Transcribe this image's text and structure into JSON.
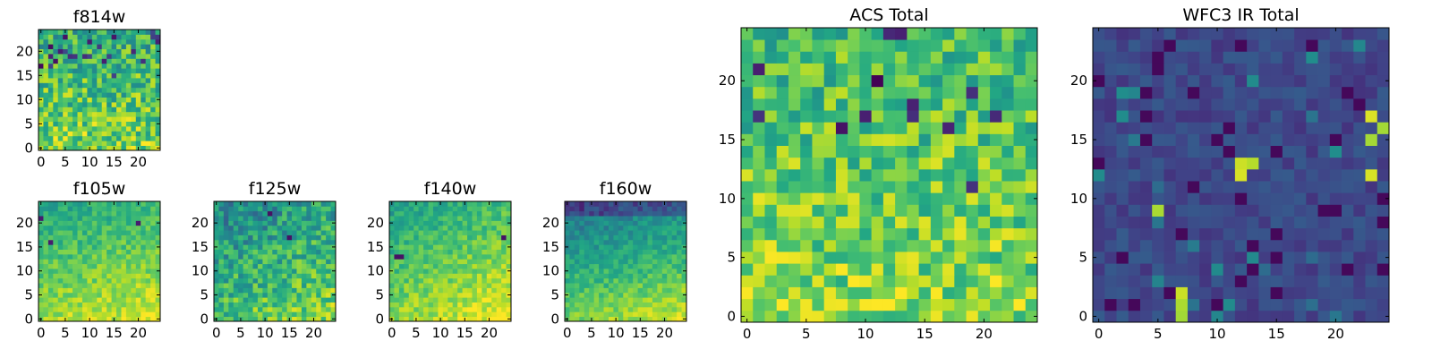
{
  "chart_data": [
    {
      "type": "heatmap",
      "title": "f814w",
      "colormap": "viridis",
      "grid_size": 25,
      "xticks": [
        0,
        5,
        10,
        15,
        20
      ],
      "yticks": [
        0,
        5,
        10,
        15,
        20
      ],
      "xlim": [
        -0.5,
        24.5
      ],
      "ylim": [
        -0.5,
        24.5
      ],
      "pattern": "mostly high (green-yellow), scattered low pixels concentrated near top rows"
    },
    {
      "type": "heatmap",
      "title": "f105w",
      "colormap": "viridis",
      "grid_size": 25,
      "xticks": [
        0,
        5,
        10,
        15,
        20
      ],
      "yticks": [
        0,
        5,
        10,
        15,
        20
      ],
      "xlim": [
        -0.5,
        24.5
      ],
      "ylim": [
        -0.5,
        24.5
      ],
      "pattern": "smooth, brighter toward bottom, a few dark pixels upper-left and upper-right"
    },
    {
      "type": "heatmap",
      "title": "f125w",
      "colormap": "viridis",
      "grid_size": 25,
      "xticks": [
        0,
        5,
        10,
        15,
        20
      ],
      "yticks": [
        0,
        5,
        10,
        15,
        20
      ],
      "xlim": [
        -0.5,
        24.5
      ],
      "ylim": [
        -0.5,
        24.5
      ],
      "pattern": "blotchy, mid values, brighter toward bottom-right"
    },
    {
      "type": "heatmap",
      "title": "f140w",
      "colormap": "viridis",
      "grid_size": 25,
      "xticks": [
        0,
        5,
        10,
        15,
        20
      ],
      "yticks": [
        0,
        5,
        10,
        15,
        20
      ],
      "xlim": [
        -0.5,
        24.5
      ],
      "ylim": [
        -0.5,
        24.5
      ],
      "pattern": "smooth, bright toward bottom-right, dark pixel at left near y=13"
    },
    {
      "type": "heatmap",
      "title": "f160w",
      "colormap": "viridis",
      "grid_size": 25,
      "xticks": [
        0,
        5,
        10,
        15,
        20
      ],
      "yticks": [
        0,
        5,
        10,
        15,
        20
      ],
      "xlim": [
        -0.5,
        24.5
      ],
      "ylim": [
        -0.5,
        24.5
      ],
      "pattern": "darker top rows, gradient brighter toward bottom-right"
    },
    {
      "type": "heatmap",
      "title": "ACS Total",
      "colormap": "viridis",
      "grid_size": 25,
      "xticks": [
        0,
        5,
        10,
        15,
        20
      ],
      "yticks": [
        0,
        5,
        10,
        15,
        20
      ],
      "xlim": [
        -0.5,
        24.5
      ],
      "ylim": [
        -0.5,
        24.5
      ],
      "pattern": "noisy green-yellow, scattered dark pixels mostly upper half, bright bottom rows"
    },
    {
      "type": "heatmap",
      "title": "WFC3 IR Total",
      "colormap": "viridis",
      "grid_size": 25,
      "xticks": [
        0,
        5,
        10,
        15,
        20
      ],
      "yticks": [
        0,
        5,
        10,
        15,
        20
      ],
      "xlim": [
        -0.5,
        24.5
      ],
      "ylim": [
        -0.5,
        24.5
      ],
      "pattern": "mostly dark blue, few bright hotspots near (12,13), (23,17), (7,1)"
    }
  ]
}
